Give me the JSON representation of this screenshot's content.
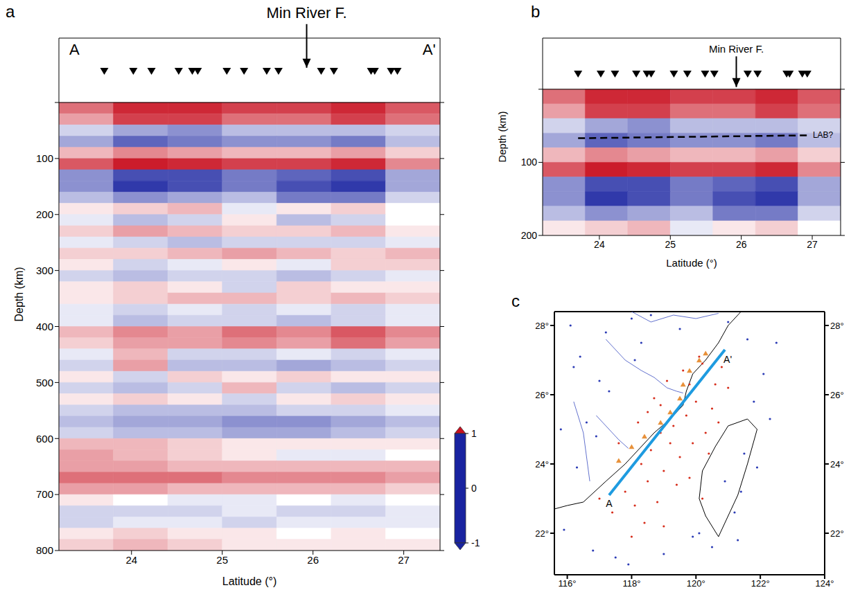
{
  "chart_data": [
    {
      "type": "heatmap",
      "panel": "a",
      "xlabel": "Latitude (°)",
      "ylabel": "Depth (km)",
      "xlim": [
        23.2,
        27.4
      ],
      "xticks": [
        24,
        25,
        26,
        27
      ],
      "ylim": [
        -115,
        800
      ],
      "yticks": [
        0,
        100,
        200,
        300,
        400,
        500,
        600,
        700,
        800
      ],
      "cells": {
        "lat_edges": [
          23.2,
          23.8,
          24.4,
          25.0,
          25.6,
          26.2,
          26.8,
          27.4
        ],
        "depth_edges": [
          0,
          20,
          40,
          60,
          80,
          100,
          120,
          140,
          160,
          180,
          200,
          220,
          240,
          260,
          280,
          300,
          320,
          340,
          360,
          380,
          400,
          420,
          440,
          460,
          480,
          500,
          520,
          540,
          560,
          580,
          600,
          620,
          640,
          660,
          680,
          700,
          720,
          740,
          760,
          780,
          800
        ],
        "values": [
          [
            0.6,
            0.9,
            0.9,
            0.8,
            0.8,
            0.9,
            0.7
          ],
          [
            0.4,
            0.8,
            0.8,
            0.6,
            0.6,
            0.8,
            0.6
          ],
          [
            -0.2,
            -0.4,
            -0.5,
            -0.3,
            -0.3,
            -0.3,
            -0.2
          ],
          [
            -0.4,
            -0.7,
            -0.6,
            -0.5,
            -0.5,
            -0.6,
            -0.3
          ],
          [
            0.3,
            0.5,
            0.4,
            0.3,
            0.3,
            0.4,
            0.2
          ],
          [
            0.7,
            0.95,
            0.9,
            0.8,
            0.8,
            0.9,
            0.5
          ],
          [
            -0.5,
            -0.8,
            -0.8,
            -0.6,
            -0.7,
            -0.8,
            -0.4
          ],
          [
            -0.5,
            -0.9,
            -0.8,
            -0.6,
            -0.8,
            -0.9,
            -0.4
          ],
          [
            -0.3,
            -0.5,
            -0.4,
            -0.3,
            -0.6,
            -0.6,
            -0.2
          ],
          [
            0.1,
            0.2,
            0.3,
            -0.1,
            0.1,
            0.2,
            0.0
          ],
          [
            -0.1,
            -0.3,
            -0.2,
            0.1,
            -0.3,
            -0.2,
            0.0
          ],
          [
            0.2,
            0.4,
            0.3,
            0.2,
            0.2,
            0.3,
            0.1
          ],
          [
            -0.1,
            -0.2,
            -0.3,
            -0.2,
            -0.2,
            -0.2,
            -0.1
          ],
          [
            0.2,
            0.2,
            0.3,
            0.4,
            0.3,
            0.2,
            0.3
          ],
          [
            0.1,
            -0.2,
            -0.1,
            0.1,
            -0.1,
            0.2,
            0.2
          ],
          [
            -0.2,
            -0.3,
            -0.2,
            -0.2,
            -0.3,
            -0.2,
            -0.1
          ],
          [
            0.1,
            0.2,
            0.1,
            -0.2,
            0.2,
            0.1,
            0.1
          ],
          [
            0.1,
            0.2,
            0.3,
            0.3,
            0.2,
            0.3,
            0.2
          ],
          [
            -0.1,
            -0.2,
            -0.1,
            -0.2,
            -0.1,
            -0.2,
            -0.1
          ],
          [
            -0.1,
            -0.3,
            -0.2,
            -0.2,
            -0.3,
            -0.2,
            -0.1
          ],
          [
            0.3,
            0.5,
            0.4,
            0.6,
            0.5,
            0.7,
            0.5
          ],
          [
            0.2,
            0.4,
            0.4,
            0.5,
            0.4,
            0.6,
            0.4
          ],
          [
            -0.1,
            0.3,
            -0.2,
            -0.2,
            -0.1,
            -0.2,
            -0.1
          ],
          [
            -0.2,
            0.4,
            -0.3,
            -0.3,
            -0.4,
            -0.3,
            -0.2
          ],
          [
            0.1,
            -0.2,
            0.2,
            0.1,
            0.2,
            0.1,
            0.1
          ],
          [
            -0.2,
            -0.3,
            -0.2,
            0.3,
            -0.2,
            -0.3,
            -0.2
          ],
          [
            0.1,
            0.2,
            0.1,
            -0.2,
            0.1,
            0.2,
            0.1
          ],
          [
            -0.2,
            -0.3,
            -0.3,
            -0.3,
            -0.2,
            -0.2,
            -0.1
          ],
          [
            -0.3,
            -0.4,
            -0.4,
            -0.5,
            -0.5,
            -0.4,
            -0.3
          ],
          [
            -0.2,
            -0.3,
            -0.3,
            -0.4,
            -0.4,
            -0.3,
            -0.2
          ],
          [
            0.3,
            0.3,
            0.2,
            0.1,
            0.1,
            0.1,
            0.1
          ],
          [
            0.4,
            0.3,
            0.2,
            0.1,
            -0.1,
            -0.1,
            0.0
          ],
          [
            0.4,
            0.4,
            0.3,
            0.3,
            0.3,
            0.3,
            0.3
          ],
          [
            0.6,
            0.6,
            0.6,
            0.5,
            0.5,
            0.5,
            0.4
          ],
          [
            0.4,
            0.4,
            0.3,
            0.3,
            0.3,
            0.3,
            0.2
          ],
          [
            0.1,
            0.0,
            -0.1,
            -0.1,
            0.0,
            -0.1,
            0.0
          ],
          [
            -0.2,
            -0.2,
            -0.2,
            -0.1,
            -0.2,
            -0.2,
            -0.1
          ],
          [
            -0.2,
            -0.1,
            -0.1,
            -0.2,
            -0.1,
            -0.1,
            -0.1
          ],
          [
            0.1,
            0.2,
            0.1,
            0.1,
            0.0,
            0.1,
            0.0
          ],
          [
            0.2,
            0.3,
            0.2,
            0.1,
            0.1,
            0.1,
            0.1
          ]
        ]
      },
      "colorbar": {
        "range": [
          -1,
          1
        ],
        "ticks": [
          -1,
          0,
          1
        ]
      },
      "stations": {
        "marker": "triangle",
        "color": "#000000",
        "x": [
          23.7,
          24.02,
          24.22,
          24.52,
          24.67,
          24.73,
          25.05,
          25.24,
          25.49,
          25.62,
          26.09,
          26.23,
          26.64,
          26.68,
          26.86,
          26.93
        ],
        "y": [
          -56,
          -56,
          -56,
          -56,
          -56,
          -56,
          -56,
          -56,
          -56,
          -56,
          -56,
          -56,
          -56,
          -56,
          -56,
          -56
        ]
      },
      "annotations": [
        {
          "text": "A",
          "x": 23.37,
          "y": -94
        },
        {
          "text": "A'",
          "x": 27.28,
          "y": -94
        },
        {
          "text": "Min River F.",
          "x": 25.93,
          "y": -160,
          "arrow": [
            -140,
            -62
          ]
        }
      ]
    },
    {
      "type": "heatmap",
      "panel": "b",
      "xlabel": "Latitude (°)",
      "ylabel": "Depth (km)",
      "xlim": [
        23.2,
        27.4
      ],
      "xticks": [
        24,
        25,
        26,
        27
      ],
      "ylim": [
        -70,
        200
      ],
      "yticks": [
        0,
        100,
        200
      ],
      "cells": {
        "lat_edges": [
          23.2,
          23.8,
          24.4,
          25.0,
          25.6,
          26.2,
          26.8,
          27.4
        ],
        "depth_edges": [
          0,
          20,
          40,
          60,
          80,
          100,
          120,
          140,
          160,
          180,
          200
        ],
        "values": [
          [
            0.6,
            0.9,
            0.9,
            0.8,
            0.8,
            0.9,
            0.7
          ],
          [
            0.4,
            0.8,
            0.8,
            0.6,
            0.6,
            0.8,
            0.6
          ],
          [
            -0.2,
            -0.4,
            -0.5,
            -0.3,
            -0.3,
            -0.3,
            -0.2
          ],
          [
            -0.4,
            -0.7,
            -0.6,
            -0.5,
            -0.5,
            -0.6,
            -0.3
          ],
          [
            0.3,
            0.5,
            0.4,
            0.3,
            0.3,
            0.4,
            0.2
          ],
          [
            0.7,
            0.95,
            0.9,
            0.8,
            0.8,
            0.9,
            0.5
          ],
          [
            -0.5,
            -0.8,
            -0.8,
            -0.6,
            -0.7,
            -0.8,
            -0.4
          ],
          [
            -0.5,
            -0.9,
            -0.8,
            -0.6,
            -0.8,
            -0.9,
            -0.4
          ],
          [
            -0.3,
            -0.5,
            -0.4,
            -0.3,
            -0.6,
            -0.6,
            -0.2
          ],
          [
            0.1,
            0.2,
            0.3,
            -0.1,
            0.1,
            0.2,
            0.0
          ]
        ]
      },
      "stations": {
        "marker": "triangle",
        "color": "#000000",
        "x": [
          23.7,
          24.02,
          24.22,
          24.52,
          24.67,
          24.73,
          25.05,
          25.24,
          25.49,
          25.62,
          26.09,
          26.23,
          26.64,
          26.68,
          26.86,
          26.93
        ],
        "y": [
          -21,
          -21,
          -21,
          -21,
          -21,
          -21,
          -21,
          -21,
          -21,
          -21,
          -21,
          -21,
          -21,
          -21,
          -21,
          -21
        ]
      },
      "lines": [
        {
          "text": "LAB?",
          "x": [
            23.7,
            26.95
          ],
          "y": [
            67,
            63
          ],
          "line_style": "dashed",
          "color": "#000000"
        }
      ],
      "annotations": [
        {
          "text": "Min River F.",
          "x": 25.93,
          "y": -55,
          "arrow": [
            -45,
            -3
          ]
        }
      ]
    },
    {
      "type": "map",
      "panel": "c",
      "xlim": [
        115.6,
        124
      ],
      "xticks": [
        {
          "value": 116,
          "label": "116°"
        },
        {
          "value": 118,
          "label": "118°"
        },
        {
          "value": 120,
          "label": "120°"
        },
        {
          "value": 122,
          "label": "122°"
        },
        {
          "value": 124,
          "label": "124°"
        }
      ],
      "ylim": [
        20.8,
        28.4
      ],
      "yticks": [
        {
          "value": 22,
          "label": "22°"
        },
        {
          "value": 24,
          "label": "24°"
        },
        {
          "value": 26,
          "label": "26°"
        },
        {
          "value": 28,
          "label": "28°"
        }
      ],
      "coastlines": [
        {
          "color": "#000000",
          "x": [
            115.6,
            116.0,
            116.5,
            117.2,
            117.8,
            118.3,
            118.7,
            119.2,
            119.6,
            119.7,
            119.9,
            120.3,
            120.7,
            121.0,
            121.5,
            121.8
          ],
          "y": [
            22.7,
            22.8,
            22.9,
            23.5,
            24.0,
            24.5,
            24.9,
            25.3,
            25.7,
            26.1,
            26.6,
            27.0,
            27.5,
            28.0,
            28.5,
            28.9
          ]
        },
        {
          "color": "#000000",
          "x": [
            121.0,
            121.6,
            121.9,
            121.6,
            121.3,
            120.9,
            120.7,
            120.3,
            120.1,
            120.2,
            120.6,
            121.0
          ],
          "y": [
            25.1,
            25.3,
            25.0,
            24.0,
            23.1,
            22.3,
            21.9,
            22.5,
            23.0,
            23.8,
            24.5,
            25.1
          ]
        }
      ],
      "rivers": [
        {
          "color": "#3a4cc0",
          "x": [
            117.2,
            117.8,
            118.3,
            118.7,
            119.1,
            119.4,
            119.6
          ],
          "y": [
            27.6,
            27.0,
            26.7,
            26.5,
            26.2,
            26.1,
            26.05
          ]
        },
        {
          "color": "#3a4cc0",
          "x": [
            116.9,
            117.3,
            117.6,
            117.9
          ],
          "y": [
            25.4,
            25.0,
            24.7,
            24.45
          ]
        },
        {
          "color": "#3a4cc0",
          "x": [
            116.2,
            116.5,
            116.6,
            116.7
          ],
          "y": [
            25.8,
            24.9,
            24.2,
            23.5
          ]
        },
        {
          "color": "#3a4cc0",
          "x": [
            118.0,
            118.6,
            119.3,
            120.0,
            120.7
          ],
          "y": [
            28.4,
            28.1,
            28.3,
            28.2,
            28.35
          ]
        }
      ],
      "events": [
        {
          "color": "#d62c1a",
          "marker": "dot",
          "x": [
            117.0,
            117.4,
            117.8,
            118.1,
            118.3,
            118.5,
            118.6,
            118.8,
            119.0,
            119.2,
            119.3,
            119.5,
            119.7,
            119.8,
            120.0,
            120.2,
            120.3,
            120.5,
            120.6,
            120.8,
            118.0,
            118.4,
            118.9,
            119.4,
            119.9,
            120.4,
            120.1,
            119.6,
            119.1,
            118.7,
            117.6,
            118.2,
            120.7,
            121.0,
            119.0,
            118.5,
            119.8,
            120.2,
            117.9,
            118.9
          ],
          "y": [
            23.0,
            22.6,
            23.2,
            22.8,
            24.0,
            23.5,
            24.4,
            22.9,
            23.8,
            24.6,
            25.1,
            24.2,
            25.4,
            26.3,
            25.8,
            26.9,
            24.9,
            25.6,
            26.3,
            26.8,
            21.9,
            22.3,
            25.7,
            23.4,
            24.6,
            24.3,
            27.1,
            26.7,
            26.4,
            25.9,
            24.6,
            25.2,
            25.2,
            26.2,
            22.2,
            25.5,
            23.6,
            23.0,
            23.8,
            24.9
          ]
        },
        {
          "color": "#2b3bb5",
          "marker": "dot",
          "x": [
            115.9,
            116.3,
            116.6,
            117.0,
            117.2,
            116.1,
            116.8,
            117.5,
            118.0,
            118.3,
            121.2,
            121.5,
            121.8,
            122.1,
            121.6,
            120.9,
            121.3,
            116.4,
            117.9,
            119.0,
            120.5,
            121.0,
            116.9,
            115.8,
            118.6,
            122.3,
            121.9,
            117.3,
            119.5,
            120.1,
            116.2,
            118.1,
            121.4,
            122.5,
            119.9
          ],
          "y": [
            22.1,
            23.9,
            25.2,
            26.4,
            27.8,
            28.0,
            21.5,
            21.3,
            28.2,
            27.5,
            22.6,
            24.3,
            25.8,
            26.6,
            27.6,
            23.5,
            21.8,
            27.1,
            21.1,
            21.4,
            21.6,
            28.1,
            24.8,
            25.0,
            28.3,
            25.3,
            23.9,
            26.1,
            27.9,
            22.0,
            26.8,
            27.0,
            23.2,
            27.5,
            21.9
          ]
        }
      ],
      "stations": {
        "marker": "triangle",
        "color": "#e8913a",
        "x": [
          117.6,
          118.0,
          118.4,
          118.9,
          119.2,
          119.5,
          119.6,
          119.8,
          120.1,
          120.3
        ],
        "y": [
          24.1,
          24.5,
          24.8,
          25.2,
          25.5,
          25.9,
          26.3,
          26.7,
          27.0,
          27.2
        ]
      },
      "profile": {
        "color": "#1e9be0",
        "x": [
          117.3,
          120.9
        ],
        "y": [
          23.1,
          27.3
        ],
        "labels": [
          "A",
          "A'"
        ]
      }
    }
  ]
}
